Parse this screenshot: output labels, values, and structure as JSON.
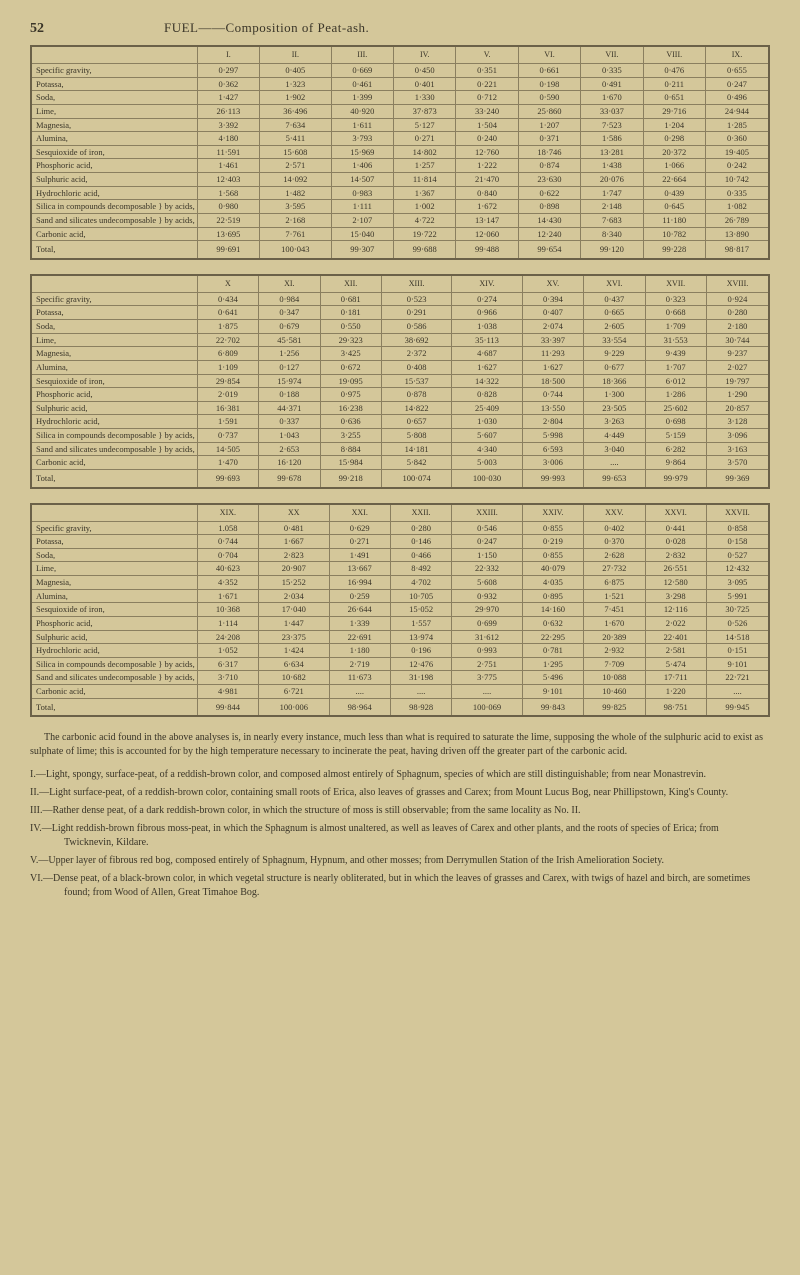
{
  "page_number": "52",
  "page_title": "FUEL——Composition of Peat-ash.",
  "row_labels": [
    "Specific gravity,",
    "Potassa,",
    "Soda,",
    "Lime,",
    "Magnesia,",
    "Alumina,",
    "Sesquioxide of iron,",
    "Phosphoric acid,",
    "Sulphuric acid,",
    "Hydrochloric acid,",
    "Silica in compounds decomposable } by acids,",
    "Sand and silicates undecomposable } by acids,",
    "Carbonic acid,",
    "Total,"
  ],
  "table1": {
    "headers": [
      "I.",
      "II.",
      "III.",
      "IV.",
      "V.",
      "VI.",
      "VII.",
      "VIII.",
      "IX."
    ],
    "rows": [
      [
        "0·297",
        "0·405",
        "0·669",
        "0·450",
        "0·351",
        "0·661",
        "0·335",
        "0·476",
        "0·655"
      ],
      [
        "0·362",
        "1·323",
        "0·461",
        "0·401",
        "0·221",
        "0·198",
        "0·491",
        "0·211",
        "0·247"
      ],
      [
        "1·427",
        "1·902",
        "1·399",
        "1·330",
        "0·712",
        "0·590",
        "1·670",
        "0·651",
        "0·496"
      ],
      [
        "26·113",
        "36·496",
        "40·920",
        "37·873",
        "33·240",
        "25·860",
        "33·037",
        "29·716",
        "24·944"
      ],
      [
        "3·392",
        "7·634",
        "1·611",
        "5·127",
        "1·504",
        "1·207",
        "7·523",
        "1·204",
        "1·285"
      ],
      [
        "4·180",
        "5·411",
        "3·793",
        "0·271",
        "0·240",
        "0·371",
        "1·586",
        "0·298",
        "0·360"
      ],
      [
        "11·591",
        "15·608",
        "15·969",
        "14·802",
        "12·760",
        "18·746",
        "13·281",
        "20·372",
        "19·405"
      ],
      [
        "1·461",
        "2·571",
        "1·406",
        "1·257",
        "1·222",
        "0·874",
        "1·438",
        "1·066",
        "0·242"
      ],
      [
        "12·403",
        "14·092",
        "14·507",
        "11·814",
        "21·470",
        "23·630",
        "20·076",
        "22·664",
        "10·742"
      ],
      [
        "1·568",
        "1·482",
        "0·983",
        "1·367",
        "0·840",
        "0·622",
        "1·747",
        "0·439",
        "0·335"
      ],
      [
        "0·980",
        "3·595",
        "1·111",
        "1·002",
        "1·672",
        "0·898",
        "2·148",
        "0·645",
        "1·082"
      ],
      [
        "22·519",
        "2·168",
        "2·107",
        "4·722",
        "13·147",
        "14·430",
        "7·683",
        "11·180",
        "26·789"
      ],
      [
        "13·695",
        "7·761",
        "15·040",
        "19·722",
        "12·060",
        "12·240",
        "8·340",
        "10·782",
        "13·890"
      ],
      [
        "99·691",
        "100·043",
        "99·307",
        "99·688",
        "99·488",
        "99·654",
        "99·120",
        "99·228",
        "98·817"
      ]
    ]
  },
  "table2": {
    "headers": [
      "X",
      "XI.",
      "XII.",
      "XIII.",
      "XIV.",
      "XV.",
      "XVI.",
      "XVII.",
      "XVIII."
    ],
    "rows": [
      [
        "0·434",
        "0·984",
        "0·681",
        "0·523",
        "0·274",
        "0·394",
        "0·437",
        "0·323",
        "0·924"
      ],
      [
        "0·641",
        "0·347",
        "0·181",
        "0·291",
        "0·966",
        "0·407",
        "0·665",
        "0·668",
        "0·280"
      ],
      [
        "1·875",
        "0·679",
        "0·550",
        "0·586",
        "1·038",
        "2·074",
        "2·605",
        "1·709",
        "2·180"
      ],
      [
        "22·702",
        "45·581",
        "29·323",
        "38·692",
        "35·113",
        "33·397",
        "33·554",
        "31·553",
        "30·744"
      ],
      [
        "6·809",
        "1·256",
        "3·425",
        "2·372",
        "4·687",
        "11·293",
        "9·229",
        "9·439",
        "9·237"
      ],
      [
        "1·109",
        "0·127",
        "0·672",
        "0·408",
        "1·627",
        "1·627",
        "0·677",
        "1·707",
        "2·027"
      ],
      [
        "29·854",
        "15·974",
        "19·095",
        "15·537",
        "14·322",
        "18·500",
        "18·366",
        "6·012",
        "19·797"
      ],
      [
        "2·019",
        "0·188",
        "0·975",
        "0·878",
        "0·828",
        "0·744",
        "1·300",
        "1·286",
        "1·290"
      ],
      [
        "16·381",
        "44·371",
        "16·238",
        "14·822",
        "25·409",
        "13·550",
        "23·505",
        "25·602",
        "20·857"
      ],
      [
        "1·591",
        "0·337",
        "0·636",
        "0·657",
        "1·030",
        "2·804",
        "3·263",
        "0·698",
        "3·128"
      ],
      [
        "0·737",
        "1·043",
        "3·255",
        "5·808",
        "5·607",
        "5·998",
        "4·449",
        "5·159",
        "3·096"
      ],
      [
        "14·505",
        "2·653",
        "8·884",
        "14·181",
        "4·340",
        "6·593",
        "3·040",
        "6·282",
        "3·163"
      ],
      [
        "1·470",
        "16·120",
        "15·984",
        "5·842",
        "5·003",
        "3·006",
        "....",
        "9·864",
        "3·570"
      ],
      [
        "99·693",
        "99·678",
        "99·218",
        "100·074",
        "100·030",
        "99·993",
        "99·653",
        "99·979",
        "99·369"
      ]
    ]
  },
  "table3": {
    "headers": [
      "XIX.",
      "XX",
      "XXI.",
      "XXII.",
      "XXIII.",
      "XXIV.",
      "XXV.",
      "XXVI.",
      "XXVII."
    ],
    "rows": [
      [
        "1.058",
        "0·481",
        "0·629",
        "0·280",
        "0·546",
        "0·855",
        "0·402",
        "0·441",
        "0·858"
      ],
      [
        "0·744",
        "1·667",
        "0·271",
        "0·146",
        "0·247",
        "0·219",
        "0·370",
        "0·028",
        "0·158"
      ],
      [
        "0·704",
        "2·823",
        "1·491",
        "0·466",
        "1·150",
        "0·855",
        "2·628",
        "2·832",
        "0·527"
      ],
      [
        "40·623",
        "20·907",
        "13·667",
        "8·492",
        "22·332",
        "40·079",
        "27·732",
        "26·551",
        "12·432"
      ],
      [
        "4·352",
        "15·252",
        "16·994",
        "4·702",
        "5·608",
        "4·035",
        "6·875",
        "12·580",
        "3·095"
      ],
      [
        "1·671",
        "2·034",
        "0·259",
        "10·705",
        "0·932",
        "0·895",
        "1·521",
        "3·298",
        "5·991"
      ],
      [
        "10·368",
        "17·040",
        "26·644",
        "15·052",
        "29·970",
        "14·160",
        "7·451",
        "12·116",
        "30·725"
      ],
      [
        "1·114",
        "1·447",
        "1·339",
        "1·557",
        "0·699",
        "0·632",
        "1·670",
        "2·022",
        "0·526"
      ],
      [
        "24·208",
        "23·375",
        "22·691",
        "13·974",
        "31·612",
        "22·295",
        "20·389",
        "22·401",
        "14·518"
      ],
      [
        "1·052",
        "1·424",
        "1·180",
        "0·196",
        "0·993",
        "0·781",
        "2·932",
        "2·581",
        "0·151"
      ],
      [
        "6·317",
        "6·634",
        "2·719",
        "12·476",
        "2·751",
        "1·295",
        "7·709",
        "5·474",
        "9·101"
      ],
      [
        "3·710",
        "10·682",
        "11·673",
        "31·198",
        "3·775",
        "5·496",
        "10·088",
        "17·711",
        "22·721"
      ],
      [
        "4·981",
        "6·721",
        "....",
        "....",
        "....",
        "9·101",
        "10·460",
        "1·220",
        "...."
      ],
      [
        "99·844",
        "100·006",
        "98·964",
        "98·928",
        "100·069",
        "99·843",
        "99·825",
        "98·751",
        "99·945"
      ]
    ]
  },
  "paragraph": "The carbonic acid found in the above analyses is, in nearly every instance, much less than what is required to saturate the lime, supposing the whole of the sulphuric acid to exist as sulphate of lime; this is accounted for by the high temperature necessary to incinerate the peat, having driven off the greater part of the carbonic acid.",
  "notes": [
    "I.—Light, spongy, surface-peat, of a reddish-brown color, and composed almost entirely of Sphagnum, species of which are still distinguishable; from near Monastrevin.",
    "II.—Light surface-peat, of a reddish-brown color, containing small roots of Erica, also leaves of grasses and Carex; from Mount Lucus Bog, near Phillipstown, King's County.",
    "III.—Rather dense peat, of a dark reddish-brown color, in which the structure of moss is still observable; from the same locality as No. II.",
    "IV.—Light reddish-brown fibrous moss-peat, in which the Sphagnum is almost unaltered, as well as leaves of Carex and other plants, and the roots of species of Erica; from Twicknevin, Kildare.",
    "V.—Upper layer of fibrous red bog, composed entirely of Sphagnum, Hypnum, and other mosses; from Derrymullen Station of the Irish Amelioration Society.",
    "VI.—Dense peat, of a black-brown color, in which vegetal structure is nearly obliterated, but in which the leaves of grasses and Carex, with twigs of hazel and birch, are sometimes found; from Wood of Allen, Great Timahoe Bog."
  ]
}
